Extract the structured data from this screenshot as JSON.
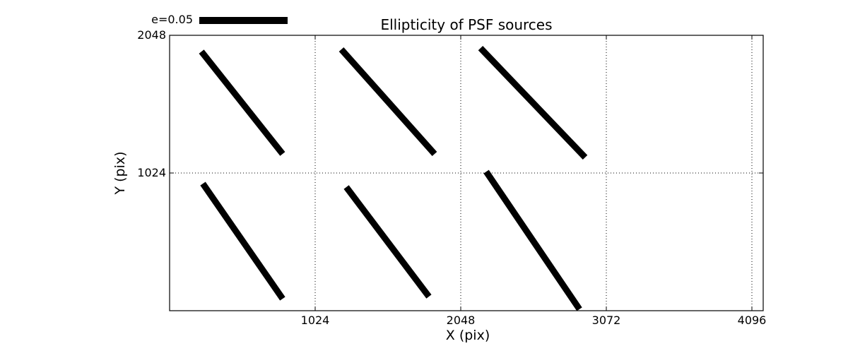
{
  "chart_data": {
    "type": "line",
    "subtype": "ellipticity-whisker-plot",
    "title": "Ellipticity of PSF sources",
    "xlabel": "X (pix)",
    "ylabel": "Y (pix)",
    "xlim": [
      0,
      4180
    ],
    "ylim": [
      0,
      2048
    ],
    "xticks": [
      1024,
      2048,
      3072,
      4096
    ],
    "yticks": [
      1024,
      2048
    ],
    "grid": "dotted",
    "legend": {
      "label": "e=0.05",
      "position": "upper-left-outside"
    },
    "series": [
      {
        "name": "psf-ellipticity-sticks",
        "segments": [
          {
            "x1": 224,
            "y1": 1927,
            "x2": 795,
            "y2": 1166
          },
          {
            "x1": 1208,
            "y1": 1943,
            "x2": 1864,
            "y2": 1166
          },
          {
            "x1": 2187,
            "y1": 1953,
            "x2": 2923,
            "y2": 1140
          },
          {
            "x1": 234,
            "y1": 945,
            "x2": 795,
            "y2": 89
          },
          {
            "x1": 1243,
            "y1": 919,
            "x2": 1824,
            "y2": 105
          },
          {
            "x1": 2227,
            "y1": 1034,
            "x2": 2883,
            "y2": 11
          }
        ]
      }
    ],
    "colors": {
      "data": "#000000",
      "grid": "#000000",
      "background": "#ffffff"
    }
  }
}
